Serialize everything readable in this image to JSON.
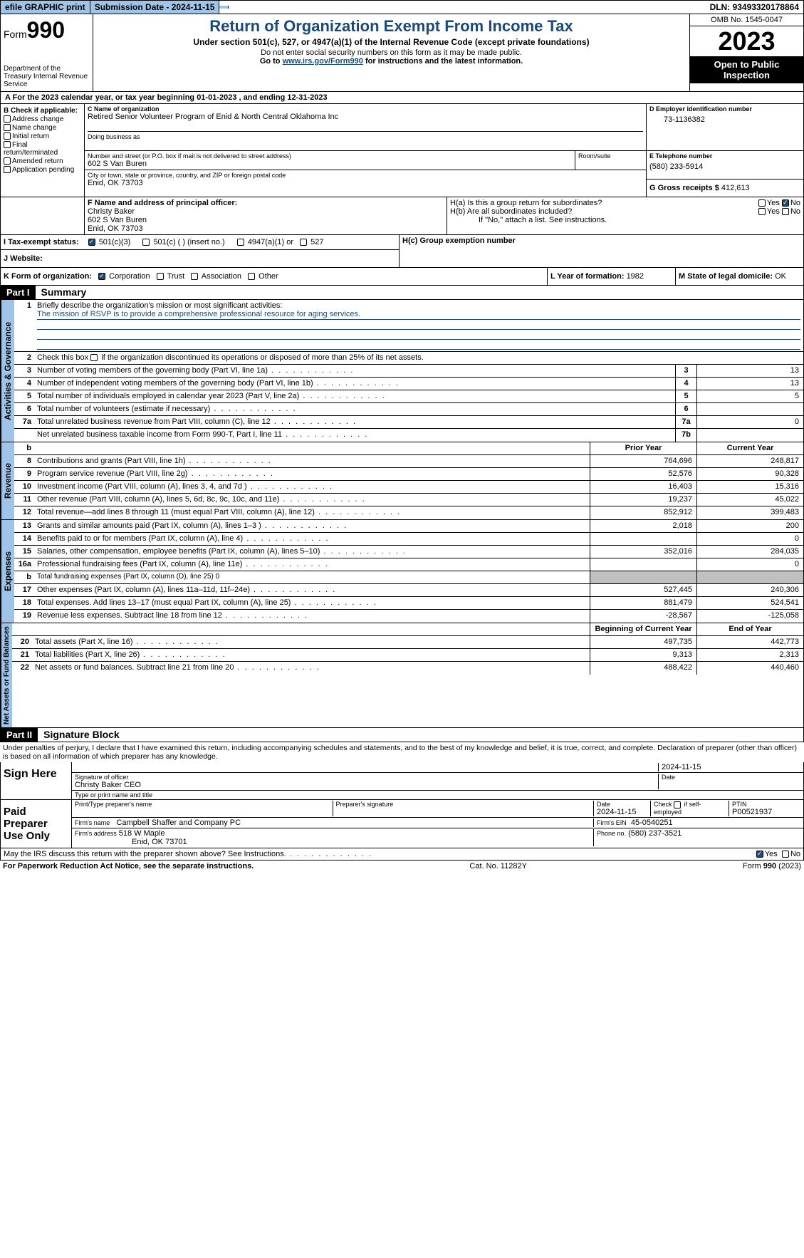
{
  "topbar": {
    "efile": "efile GRAPHIC print",
    "submission_label": "Submission Date - ",
    "submission_date": "2024-11-15",
    "dln_label": "DLN: ",
    "dln": "93493320178864"
  },
  "header": {
    "form_label": "Form",
    "form_number": "990",
    "dept": "Department of the Treasury Internal Revenue Service",
    "title": "Return of Organization Exempt From Income Tax",
    "subtitle": "Under section 501(c), 527, or 4947(a)(1) of the Internal Revenue Code (except private foundations)",
    "ssn_note": "Do not enter social security numbers on this form as it may be made public.",
    "goto": "Go to ",
    "url": "www.irs.gov/Form990",
    "goto2": " for instructions and the latest information.",
    "omb": "OMB No. 1545-0047",
    "year": "2023",
    "open": "Open to Public Inspection"
  },
  "lineA": "A For the 2023 calendar year, or tax year beginning 01-01-2023   , and ending 12-31-2023",
  "boxB": {
    "label": "B Check if applicable:",
    "items": [
      "Address change",
      "Name change",
      "Initial return",
      "Final return/terminated",
      "Amended return",
      "Application pending"
    ]
  },
  "boxC": {
    "label": "C Name of organization",
    "name": "Retired Senior Volunteer Program of Enid & North Central Oklahoma Inc",
    "dba_label": "Doing business as",
    "street_label": "Number and street (or P.O. box if mail is not delivered to street address)",
    "street": "602 S Van Buren",
    "room_label": "Room/suite",
    "city_label": "City or town, state or province, country, and ZIP or foreign postal code",
    "city": "Enid, OK  73703"
  },
  "boxD": {
    "label": "D Employer identification number",
    "value": "73-1136382"
  },
  "boxE": {
    "label": "E Telephone number",
    "value": "(580) 233-5914"
  },
  "boxG": {
    "label": "G Gross receipts $ ",
    "value": "412,613"
  },
  "boxF": {
    "label": "F  Name and address of principal officer:",
    "name": "Christy Baker",
    "addr1": "602 S Van Buren",
    "addr2": "Enid, OK  73703"
  },
  "boxH": {
    "a": "H(a)  Is this a group return for subordinates?",
    "b": "H(b)  Are all subordinates included?",
    "note": "If \"No,\" attach a list. See instructions.",
    "c": "H(c)  Group exemption number"
  },
  "boxI": {
    "label": "I  Tax-exempt status:",
    "o1": "501(c)(3)",
    "o2": "501(c) (  ) (insert no.)",
    "o3": "4947(a)(1) or",
    "o4": "527"
  },
  "boxJ": "J  Website:",
  "boxK": {
    "label": "K Form of organization:",
    "o1": "Corporation",
    "o2": "Trust",
    "o3": "Association",
    "o4": "Other"
  },
  "boxL": {
    "label": "L Year of formation: ",
    "value": "1982"
  },
  "boxM": {
    "label": "M State of legal domicile: ",
    "value": "OK"
  },
  "part1": {
    "bar": "Part I",
    "title": "Summary",
    "vlabels": [
      "Activities & Governance",
      "Revenue",
      "Expenses",
      "Net Assets or Fund Balances"
    ],
    "l1": "Briefly describe the organization's mission or most significant activities:",
    "mission": "The mission of RSVP is to provide a comprehensive professional resource for aging services.",
    "l2": "Check this box         if the organization discontinued its operations or disposed of more than 25% of its net assets.",
    "rows_gov": [
      {
        "n": "3",
        "d": "Number of voting members of the governing body (Part VI, line 1a)",
        "c": "3",
        "v": "13"
      },
      {
        "n": "4",
        "d": "Number of independent voting members of the governing body (Part VI, line 1b)",
        "c": "4",
        "v": "13"
      },
      {
        "n": "5",
        "d": "Total number of individuals employed in calendar year 2023 (Part V, line 2a)",
        "c": "5",
        "v": "5"
      },
      {
        "n": "6",
        "d": "Total number of volunteers (estimate if necessary)",
        "c": "6",
        "v": ""
      },
      {
        "n": "7a",
        "d": "Total unrelated business revenue from Part VIII, column (C), line 12",
        "c": "7a",
        "v": "0"
      },
      {
        "n": "",
        "d": "Net unrelated business taxable income from Form 990-T, Part I, line 11",
        "c": "7b",
        "v": ""
      }
    ],
    "hdr_prior": "Prior Year",
    "hdr_curr": "Current Year",
    "rows_rev": [
      {
        "n": "8",
        "d": "Contributions and grants (Part VIII, line 1h)",
        "p": "764,696",
        "c": "248,817"
      },
      {
        "n": "9",
        "d": "Program service revenue (Part VIII, line 2g)",
        "p": "52,576",
        "c": "90,328"
      },
      {
        "n": "10",
        "d": "Investment income (Part VIII, column (A), lines 3, 4, and 7d )",
        "p": "16,403",
        "c": "15,316"
      },
      {
        "n": "11",
        "d": "Other revenue (Part VIII, column (A), lines 5, 6d, 8c, 9c, 10c, and 11e)",
        "p": "19,237",
        "c": "45,022"
      },
      {
        "n": "12",
        "d": "Total revenue—add lines 8 through 11 (must equal Part VIII, column (A), line 12)",
        "p": "852,912",
        "c": "399,483"
      }
    ],
    "rows_exp": [
      {
        "n": "13",
        "d": "Grants and similar amounts paid (Part IX, column (A), lines 1–3 )",
        "p": "2,018",
        "c": "200"
      },
      {
        "n": "14",
        "d": "Benefits paid to or for members (Part IX, column (A), line 4)",
        "p": "",
        "c": "0"
      },
      {
        "n": "15",
        "d": "Salaries, other compensation, employee benefits (Part IX, column (A), lines 5–10)",
        "p": "352,016",
        "c": "284,035"
      },
      {
        "n": "16a",
        "d": "Professional fundraising fees (Part IX, column (A), line 11e)",
        "p": "",
        "c": "0"
      },
      {
        "n": "b",
        "d": "Total fundraising expenses (Part IX, column (D), line 25) 0",
        "grey": true
      },
      {
        "n": "17",
        "d": "Other expenses (Part IX, column (A), lines 11a–11d, 11f–24e)",
        "p": "527,445",
        "c": "240,306"
      },
      {
        "n": "18",
        "d": "Total expenses. Add lines 13–17 (must equal Part IX, column (A), line 25)",
        "p": "881,479",
        "c": "524,541"
      },
      {
        "n": "19",
        "d": "Revenue less expenses. Subtract line 18 from line 12",
        "p": "-28,567",
        "c": "-125,058"
      }
    ],
    "hdr_beg": "Beginning of Current Year",
    "hdr_end": "End of Year",
    "rows_net": [
      {
        "n": "20",
        "d": "Total assets (Part X, line 16)",
        "p": "497,735",
        "c": "442,773"
      },
      {
        "n": "21",
        "d": "Total liabilities (Part X, line 26)",
        "p": "9,313",
        "c": "2,313"
      },
      {
        "n": "22",
        "d": "Net assets or fund balances. Subtract line 21 from line 20",
        "p": "488,422",
        "c": "440,460"
      }
    ]
  },
  "part2": {
    "bar": "Part II",
    "title": "Signature Block",
    "decl": "Under penalties of perjury, I declare that I have examined this return, including accompanying schedules and statements, and to the best of my knowledge and belief, it is true, correct, and complete. Declaration of preparer (other than officer) is based on all information of which preparer has any knowledge."
  },
  "sign": {
    "here": "Sign Here",
    "sig_label": "Signature of officer",
    "officer": "Christy Baker CEO",
    "type_label": "Type or print name and title",
    "date_label": "Date",
    "date": "2024-11-15"
  },
  "paid": {
    "label": "Paid Preparer Use Only",
    "prep_name_label": "Print/Type preparer's name",
    "prep_sig_label": "Preparer's signature",
    "date_label": "Date",
    "date": "2024-11-15",
    "check_label": "Check          if self-employed",
    "ptin_label": "PTIN",
    "ptin": "P00521937",
    "firm_name_label": "Firm's name",
    "firm_name": "Campbell Shaffer and Company PC",
    "firm_ein_label": "Firm's EIN",
    "firm_ein": "45-0540251",
    "firm_addr_label": "Firm's address",
    "firm_addr1": "518 W Maple",
    "firm_addr2": "Enid, OK  73701",
    "phone_label": "Phone no.",
    "phone": "(580) 237-3521"
  },
  "discuss": "May the IRS discuss this return with the preparer shown above? See Instructions.",
  "footer": {
    "pra": "For Paperwork Reduction Act Notice, see the separate instructions.",
    "cat": "Cat. No. 11282Y",
    "form": "Form 990 (2023)"
  },
  "yes": "Yes",
  "no": "No"
}
